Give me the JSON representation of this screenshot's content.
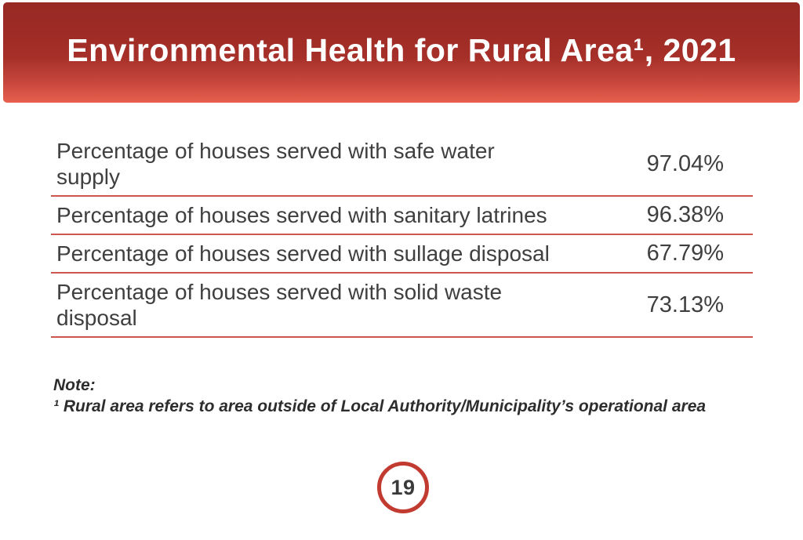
{
  "header": {
    "title": "Environmental Health for Rural Area¹, 2021"
  },
  "table": {
    "rows": [
      {
        "label": "Percentage of houses served with safe water\nsupply",
        "value": "97.04%"
      },
      {
        "label": "Percentage of houses served with sanitary latrines",
        "value": "96.38%"
      },
      {
        "label": "Percentage of houses served with sullage disposal",
        "value": "67.79%"
      },
      {
        "label": "Percentage of houses served with solid waste\ndisposal",
        "value": "73.13%"
      }
    ]
  },
  "note": {
    "heading": "Note:",
    "line": "¹ Rural area refers to area outside of Local Authority/Municipality’s operational area"
  },
  "footer": {
    "page_number": "19"
  },
  "colors": {
    "banner_top": "#9E2B26",
    "banner_bottom": "#E8604F",
    "separator": "#CD564F",
    "circle_border": "#C23B31",
    "body_text": "#3F3F3F"
  },
  "chart_data": {
    "type": "table",
    "title": "Environmental Health for Rural Area, 2021",
    "categories": [
      "Percentage of houses served with safe water supply",
      "Percentage of houses served with sanitary latrines",
      "Percentage of houses served with sullage disposal",
      "Percentage of houses served with solid waste disposal"
    ],
    "values": [
      97.04,
      96.38,
      67.79,
      73.13
    ]
  }
}
